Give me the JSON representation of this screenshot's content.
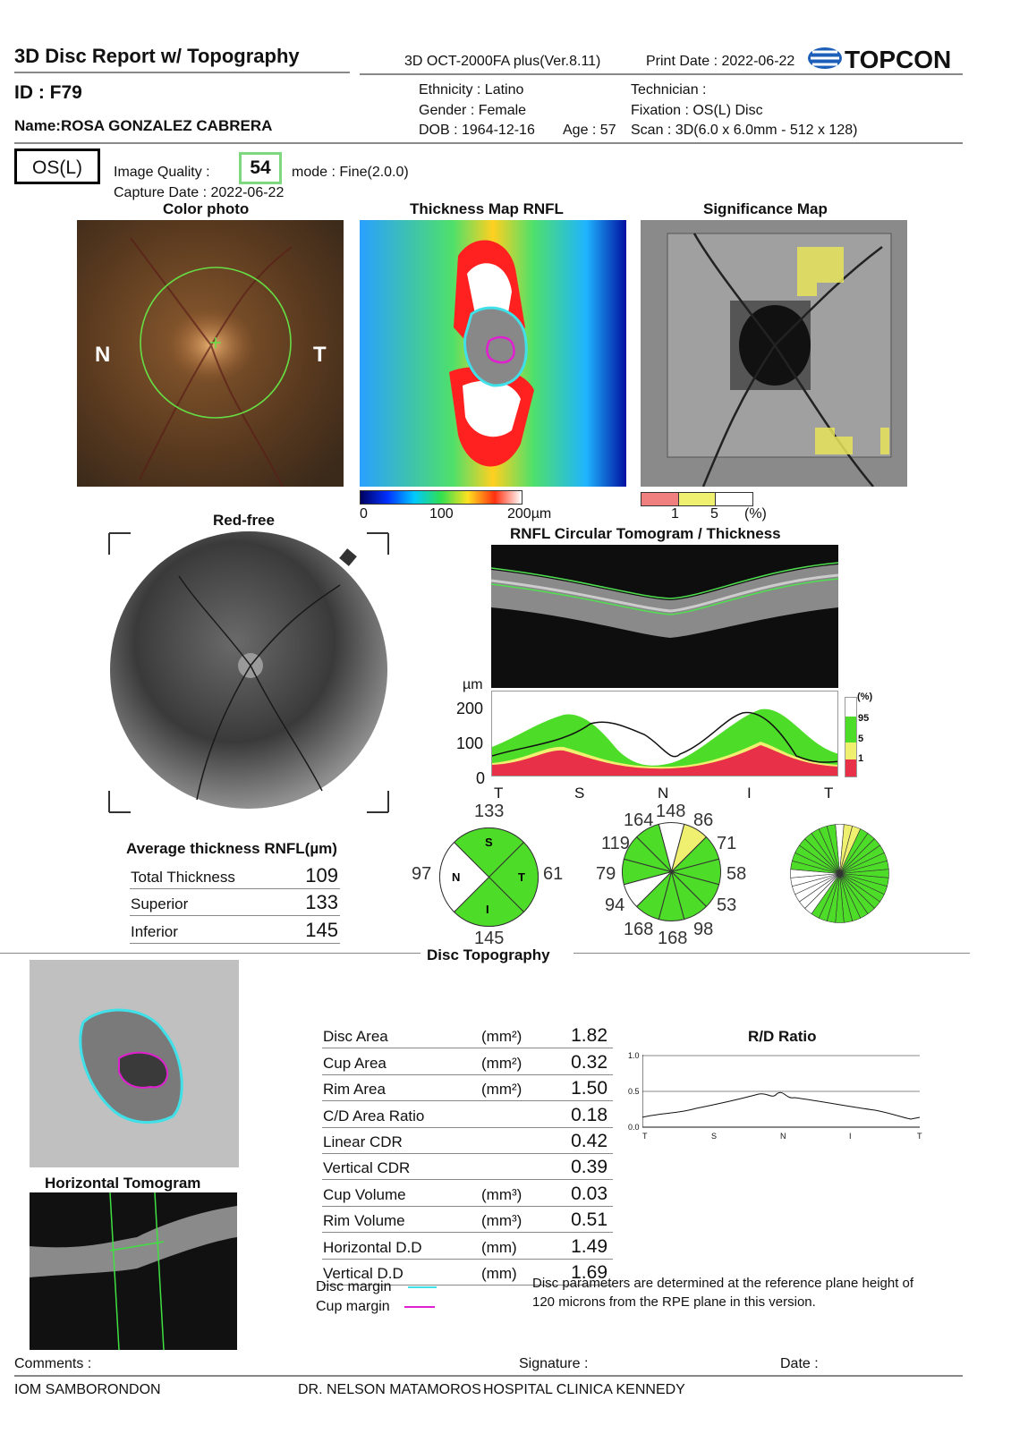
{
  "header": {
    "title": "3D Disc Report w/ Topography",
    "device": "3D OCT-2000FA plus(Ver.8.11)",
    "print_date": "Print Date : 2022-06-22",
    "brand": "TOPCON"
  },
  "patient": {
    "id": "ID : F79",
    "name": "Name:ROSA GONZALEZ CABRERA",
    "ethnicity": "Ethnicity : Latino",
    "gender": "Gender : Female",
    "dob": "DOB : 1964-12-16",
    "age": "Age : 57",
    "technician": "Technician :",
    "fixation": "Fixation : OS(L) Disc",
    "scan": "Scan : 3D(6.0 x 6.0mm - 512 x 128)"
  },
  "exam": {
    "eye": "OS(L)",
    "image_quality_label": "Image Quality :",
    "image_quality_value": "54",
    "mode": "mode : Fine(2.0.0)",
    "capture_date": "Capture Date : 2022-06-22"
  },
  "panels": {
    "color_photo": "Color photo",
    "thickness_map": "Thickness Map RNFL",
    "significance_map": "Significance Map",
    "red_free": "Red-free",
    "circular_tomogram": "RNFL Circular Tomogram / Thickness",
    "nasal": "N",
    "temporal": "T"
  },
  "thickness_scale": {
    "min": "0",
    "mid": "100",
    "max": "200µm"
  },
  "significance_scale": {
    "p1": "1",
    "p5": "5",
    "unit": "(%)"
  },
  "rnfl_graph": {
    "unit": "µm",
    "yticks": [
      "200",
      "100",
      "0"
    ],
    "xticks": [
      "T",
      "S",
      "N",
      "I",
      "T"
    ],
    "legend_unit": "(%)",
    "legend": [
      "95",
      "5",
      "1"
    ]
  },
  "quadrants": {
    "values": {
      "S": "133",
      "N": "97",
      "T": "61",
      "I": "145"
    },
    "labels": {
      "S": "S",
      "N": "N",
      "T": "T",
      "I": "I"
    }
  },
  "clock_hours": [
    "148",
    "86",
    "71",
    "58",
    "53",
    "98",
    "168",
    "168",
    "94",
    "79",
    "119",
    "164"
  ],
  "average_thickness": {
    "title": "Average thickness RNFL(µm)",
    "rows": [
      {
        "label": "Total Thickness",
        "value": "109"
      },
      {
        "label": "Superior",
        "value": "133"
      },
      {
        "label": "Inferior",
        "value": "145"
      }
    ]
  },
  "disc_topography": {
    "title": "Disc Topography",
    "horizontal_tomogram": "Horizontal Tomogram",
    "rows": [
      {
        "label": "Disc Area",
        "unit": "(mm²)",
        "value": "1.82"
      },
      {
        "label": "Cup Area",
        "unit": "(mm²)",
        "value": "0.32"
      },
      {
        "label": "Rim Area",
        "unit": "(mm²)",
        "value": "1.50"
      },
      {
        "label": "C/D Area Ratio",
        "unit": "",
        "value": "0.18"
      },
      {
        "label": "Linear CDR",
        "unit": "",
        "value": "0.42"
      },
      {
        "label": "Vertical CDR",
        "unit": "",
        "value": "0.39"
      },
      {
        "label": "Cup Volume",
        "unit": "(mm³)",
        "value": "0.03"
      },
      {
        "label": "Rim Volume",
        "unit": "(mm³)",
        "value": "0.51"
      },
      {
        "label": "Horizontal D.D",
        "unit": "(mm)",
        "value": "1.49"
      },
      {
        "label": "Vertical D.D",
        "unit": "(mm)",
        "value": "1.69"
      }
    ],
    "legend": {
      "disc": "Disc margin",
      "cup": "Cup margin"
    },
    "note1": "Disc parameters are determined at the reference plane height of",
    "note2": "120 microns from the RPE plane in this version.",
    "rd_title": "R/D Ratio",
    "rd_yticks": [
      "1.0",
      "0.5",
      "0.0"
    ],
    "rd_xticks": [
      "T",
      "S",
      "N",
      "I",
      "T"
    ]
  },
  "footer": {
    "comments": "Comments :",
    "signature": "Signature :",
    "date": "Date :",
    "left": "IOM SAMBORONDON",
    "mid": "DR. NELSON MATAMOROS",
    "right": "HOSPITAL CLINICA KENNEDY"
  },
  "colors": {
    "accent_green": "#7fd87f",
    "cyan": "#3fe0e8",
    "magenta": "#e020d0"
  }
}
